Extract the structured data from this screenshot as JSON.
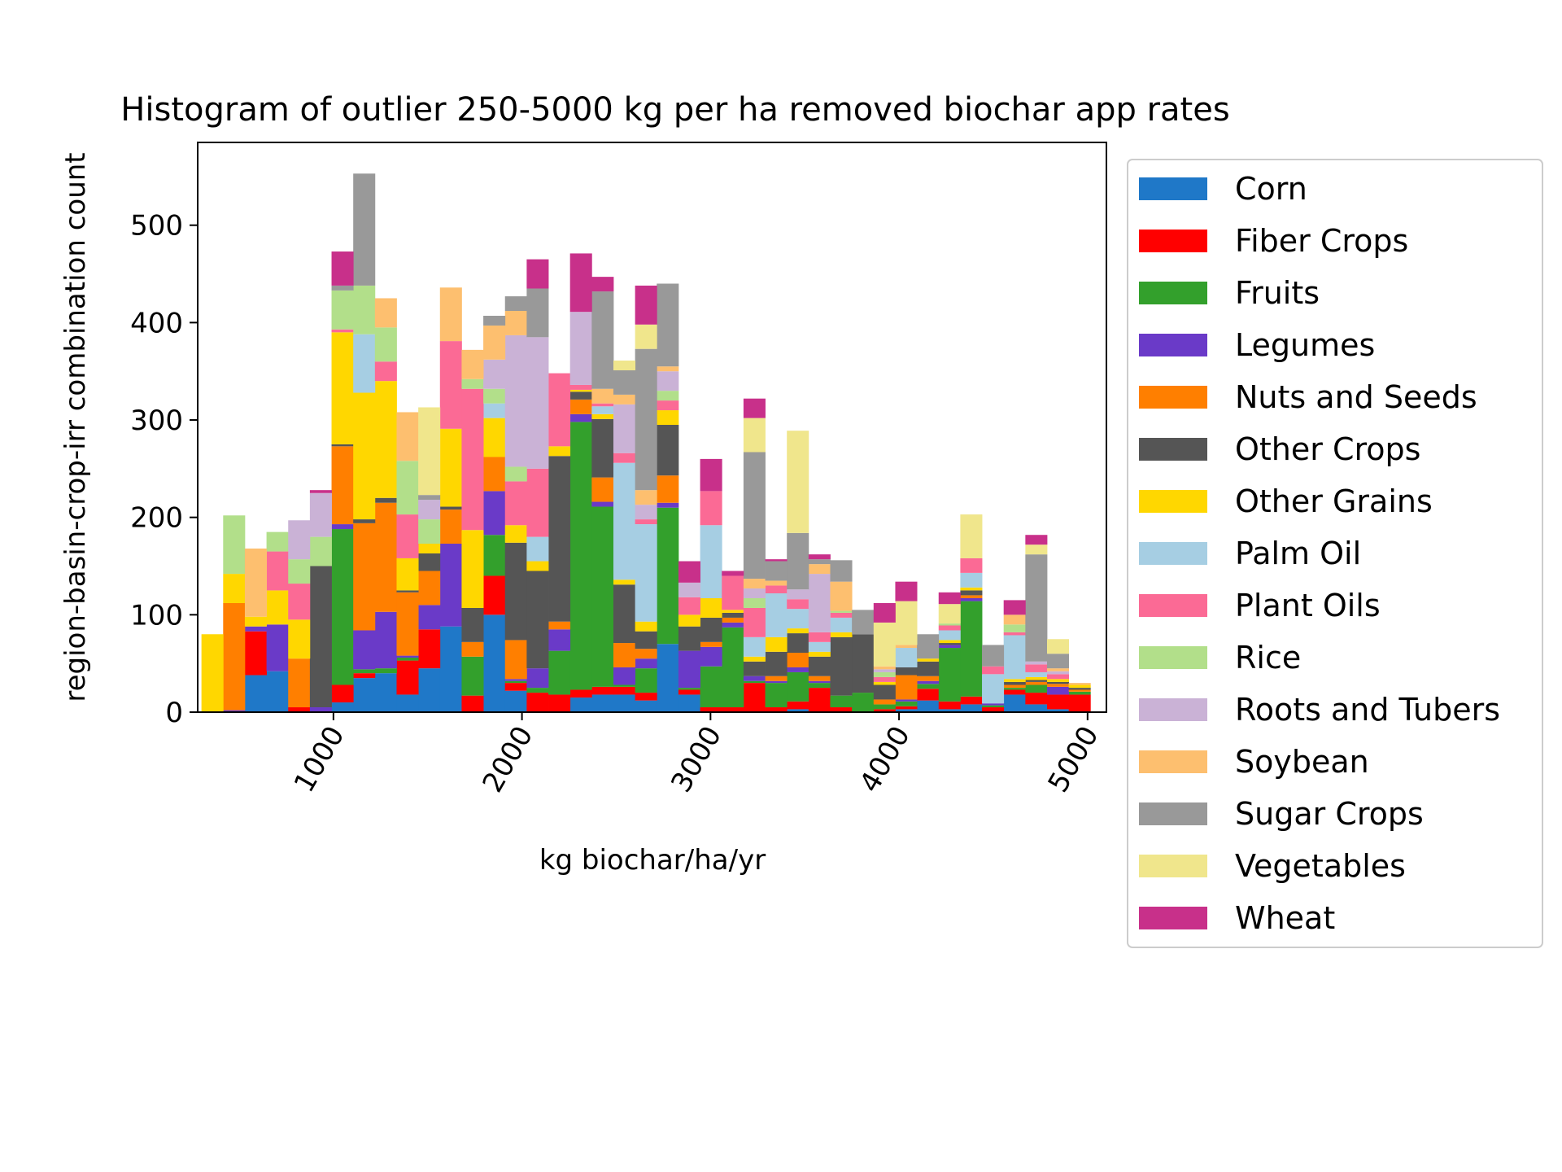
{
  "chart_data": {
    "type": "bar",
    "stacked": true,
    "title": "Histogram of outlier 250-5000 kg per ha removed biochar app rates",
    "xlabel": "kg biochar/ha/yr",
    "ylabel": "region-basin-crop-irr combination count",
    "xlim": [
      280,
      5100
    ],
    "ylim": [
      0,
      585
    ],
    "xticks": [
      1000,
      2000,
      3000,
      4000,
      5000
    ],
    "yticks": [
      0,
      100,
      200,
      300,
      400,
      500
    ],
    "legend_position": "outside-right",
    "grid": false,
    "bin_edges": [
      300,
      415,
      530,
      645,
      760,
      875,
      990,
      1105,
      1220,
      1335,
      1450,
      1565,
      1680,
      1795,
      1910,
      2025,
      2140,
      2255,
      2370,
      2485,
      2600,
      2715,
      2830,
      2945,
      3060,
      3175,
      3290,
      3405,
      3520,
      3635,
      3750,
      3865,
      3980,
      4095,
      4210,
      4325,
      4440,
      4555,
      4670,
      4785,
      4900,
      5015
    ],
    "series": [
      {
        "name": "Corn",
        "color": "#1f78c8",
        "values": [
          0,
          0,
          38,
          42,
          0,
          0,
          10,
          35,
          40,
          18,
          45,
          88,
          0,
          100,
          22,
          0,
          0,
          15,
          18,
          18,
          12,
          70,
          18,
          0,
          0,
          0,
          0,
          3,
          0,
          0,
          0,
          0,
          3,
          12,
          3,
          8,
          0,
          18,
          8,
          3,
          0
        ]
      },
      {
        "name": "Fiber Crops",
        "color": "#ff0000",
        "values": [
          0,
          0,
          45,
          0,
          5,
          0,
          18,
          5,
          0,
          35,
          40,
          0,
          17,
          40,
          8,
          20,
          18,
          8,
          8,
          8,
          8,
          0,
          5,
          5,
          5,
          30,
          5,
          8,
          25,
          5,
          0,
          3,
          3,
          12,
          8,
          8,
          5,
          5,
          12,
          15,
          18
        ]
      },
      {
        "name": "Fruits",
        "color": "#33a02c",
        "values": [
          0,
          0,
          0,
          0,
          0,
          0,
          160,
          4,
          5,
          3,
          0,
          0,
          40,
          42,
          2,
          5,
          45,
          275,
          185,
          2,
          25,
          140,
          2,
          42,
          82,
          2,
          25,
          30,
          5,
          12,
          20,
          5,
          5,
          5,
          55,
          98,
          2,
          2,
          8,
          0,
          3
        ]
      },
      {
        "name": "Legumes",
        "color": "#6a3ac8",
        "values": [
          0,
          2,
          5,
          48,
          0,
          5,
          5,
          40,
          58,
          2,
          25,
          85,
          0,
          45,
          2,
          20,
          22,
          8,
          5,
          18,
          10,
          5,
          38,
          20,
          5,
          5,
          2,
          5,
          2,
          0,
          0,
          0,
          2,
          3,
          3,
          3,
          2,
          0,
          0,
          8,
          0
        ]
      },
      {
        "name": "Nuts and Seeds",
        "color": "#ff7f00",
        "values": [
          0,
          110,
          0,
          0,
          50,
          0,
          80,
          110,
          112,
          65,
          35,
          35,
          15,
          35,
          40,
          0,
          8,
          15,
          25,
          25,
          10,
          28,
          0,
          5,
          5,
          0,
          5,
          15,
          5,
          0,
          0,
          5,
          25,
          5,
          0,
          3,
          0,
          3,
          3,
          3,
          2
        ]
      },
      {
        "name": "Other Crops",
        "color": "#555555",
        "values": [
          0,
          0,
          0,
          0,
          0,
          145,
          2,
          4,
          5,
          2,
          18,
          3,
          35,
          0,
          100,
          100,
          170,
          8,
          60,
          60,
          18,
          52,
          25,
          25,
          5,
          15,
          25,
          20,
          20,
          60,
          60,
          15,
          8,
          15,
          2,
          5,
          0,
          3,
          2,
          2,
          2
        ]
      },
      {
        "name": "Other Grains",
        "color": "#ffd700",
        "values": [
          80,
          30,
          10,
          35,
          40,
          0,
          115,
          130,
          120,
          33,
          10,
          80,
          80,
          40,
          18,
          10,
          10,
          2,
          5,
          5,
          10,
          15,
          12,
          20,
          3,
          5,
          15,
          5,
          5,
          5,
          0,
          3,
          0,
          3,
          3,
          3,
          0,
          3,
          3,
          3,
          3
        ]
      },
      {
        "name": "Palm Oil",
        "color": "#a6cee3",
        "values": [
          0,
          0,
          0,
          0,
          0,
          0,
          0,
          60,
          0,
          0,
          0,
          0,
          0,
          15,
          0,
          25,
          0,
          0,
          8,
          120,
          100,
          0,
          0,
          75,
          0,
          20,
          45,
          20,
          10,
          15,
          0,
          0,
          20,
          0,
          10,
          15,
          30,
          45,
          5,
          0,
          0
        ]
      },
      {
        "name": "Plant Oils",
        "color": "#fb6a95",
        "values": [
          0,
          0,
          0,
          40,
          37,
          0,
          3,
          0,
          20,
          45,
          0,
          90,
          145,
          0,
          45,
          70,
          75,
          5,
          3,
          10,
          5,
          10,
          18,
          35,
          35,
          30,
          8,
          10,
          10,
          5,
          0,
          5,
          0,
          0,
          5,
          15,
          8,
          3,
          8,
          5,
          0
        ]
      },
      {
        "name": "Rice",
        "color": "#b2df8a",
        "values": [
          0,
          60,
          0,
          20,
          25,
          30,
          40,
          50,
          35,
          55,
          25,
          0,
          10,
          15,
          15,
          0,
          0,
          0,
          0,
          0,
          0,
          10,
          0,
          0,
          0,
          10,
          0,
          0,
          0,
          2,
          0,
          5,
          0,
          0,
          2,
          0,
          0,
          8,
          0,
          0,
          0
        ]
      },
      {
        "name": "Roots and Tubers",
        "color": "#cab2d6",
        "values": [
          0,
          0,
          0,
          0,
          40,
          45,
          0,
          0,
          0,
          0,
          20,
          0,
          0,
          30,
          135,
          135,
          0,
          75,
          0,
          50,
          15,
          20,
          15,
          0,
          0,
          10,
          0,
          10,
          60,
          0,
          0,
          3,
          0,
          0,
          0,
          0,
          0,
          0,
          3,
          3,
          0
        ]
      },
      {
        "name": "Soybean",
        "color": "#fdbf6f",
        "values": [
          0,
          0,
          70,
          0,
          0,
          0,
          0,
          0,
          30,
          50,
          0,
          55,
          30,
          35,
          25,
          0,
          0,
          0,
          15,
          10,
          15,
          5,
          0,
          0,
          0,
          10,
          5,
          0,
          10,
          30,
          0,
          3,
          3,
          0,
          0,
          0,
          0,
          10,
          0,
          3,
          2
        ]
      },
      {
        "name": "Sugar Crops",
        "color": "#999999",
        "values": [
          0,
          0,
          0,
          0,
          0,
          0,
          5,
          115,
          0,
          0,
          5,
          0,
          0,
          10,
          15,
          50,
          0,
          0,
          100,
          25,
          145,
          85,
          0,
          0,
          0,
          130,
          20,
          58,
          5,
          22,
          25,
          0,
          0,
          25,
          0,
          0,
          22,
          0,
          110,
          15,
          0
        ]
      },
      {
        "name": "Vegetables",
        "color": "#f0e68c",
        "values": [
          0,
          0,
          0,
          0,
          0,
          0,
          0,
          0,
          0,
          0,
          90,
          0,
          0,
          0,
          0,
          0,
          0,
          0,
          0,
          10,
          25,
          0,
          0,
          0,
          0,
          35,
          0,
          105,
          0,
          0,
          0,
          45,
          45,
          0,
          20,
          45,
          0,
          0,
          10,
          15,
          0
        ]
      },
      {
        "name": "Wheat",
        "color": "#c8308a",
        "values": [
          0,
          0,
          0,
          0,
          0,
          3,
          35,
          0,
          0,
          0,
          0,
          0,
          0,
          0,
          0,
          30,
          0,
          60,
          15,
          0,
          40,
          0,
          22,
          33,
          5,
          20,
          2,
          0,
          5,
          0,
          0,
          20,
          20,
          0,
          12,
          0,
          0,
          15,
          10,
          0,
          0
        ]
      }
    ]
  }
}
